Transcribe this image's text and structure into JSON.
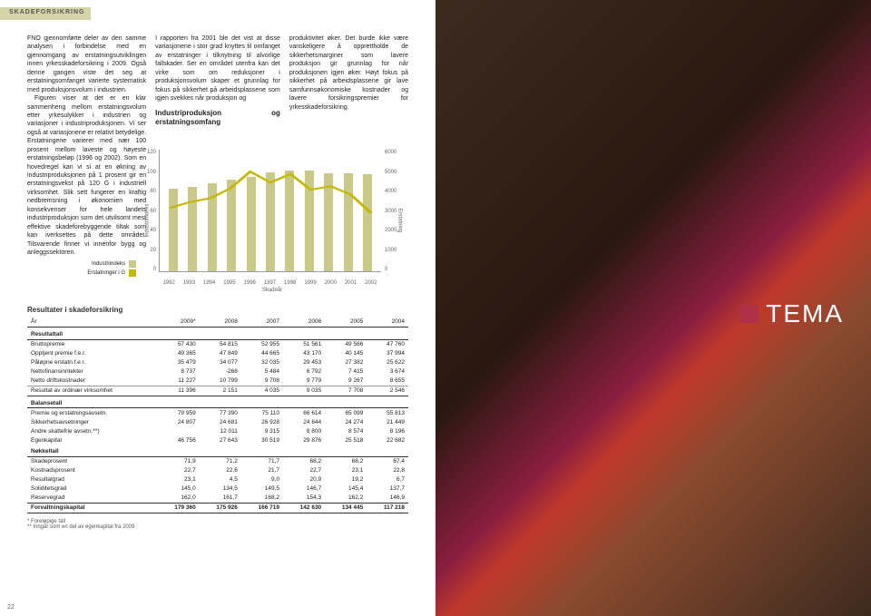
{
  "header": {
    "section_tag": "SKADEFORSIKRING",
    "page_number": "22"
  },
  "text": {
    "col1_p1": "FNO gjennomførte deler av den samme analysen i forbindelse med en gjennomgang av erstatningsutviklingen innen yrkesskadeforsikring i 2009. Også denne gangen viste det seg at erstatningsomfanget varierte systematisk med produksjonsvolum i industrien.",
    "col1_p2": "Figuren viser at det er en klar sammenheng mellom erstatningsvolum etter yrkesulykker i industrien og variasjoner i industriproduksjonen. Vi ser også at variasjonene er relativt betydelige. Erstatningene varierer med nær 100 prosent mellom laveste og høyeste erstatningsbeløp (1996 og 2002). Som en hovedregel kan vi si at en økning av industriproduksjonen på 1 prosent gir en erstatningsvekst på 120 G i industriell virksomhet. Slik sett fungerer en kraftig nedbremsning i økonomien med konsekvenser for hele landets industriproduksjon som det utvilsomt mest effektive skadeforebyggende tiltak som kan iverksettes på dette området. Tilsvarende finner vi innenfor bygg og anleggssektoren.",
    "col2_p1": "I rapporten fra 2001 ble det vist at disse variasjonene i stor grad knyttes til omfanget av erstatninger i tilknytning til alvorlige fallskader. Ser en området utenfra kan det virke som om reduksjoner i produksjonsvolum skaper et grunnlag for fokus på sikkerhet på arbeidsplassene som igjen svekkes når produksjon og",
    "col3_p1": "produktivitet øker. Det burde ikke være vanskeligere å opprettholde de sikkerhetsmarginer som lavere produksjon gir grunnlag for når produksjonen igjen øker. Høyt fokus på sikkerhet på arbeidsplassene gir lave samfunnsøkonomiske kostnader og lavere forsikringspremier for yrkesskadeforsikring."
  },
  "chart": {
    "title": "Industriproduksjon og erstatningsomfang",
    "type": "combo-bar-line",
    "x_label": "Skadeår",
    "y_left_label": "Industriindeks",
    "y_right_label": "Erstatning",
    "categories": [
      "1992",
      "1993",
      "1994",
      "1995",
      "1996",
      "1997",
      "1998",
      "1999",
      "2000",
      "2001",
      "2002"
    ],
    "y_left": {
      "min": 0,
      "max": 120,
      "step": 20
    },
    "y_right": {
      "min": 0,
      "max": 6000,
      "step": 1000
    },
    "bars_values": [
      82,
      84,
      87,
      91,
      94,
      98,
      100,
      99,
      97,
      97,
      96
    ],
    "bars_pct": [
      68,
      70,
      73,
      76,
      78,
      82,
      83,
      83,
      81,
      81,
      80
    ],
    "line_values": [
      3100,
      3400,
      3600,
      4100,
      4900,
      4400,
      4800,
      4000,
      4200,
      3800,
      2900
    ],
    "line_pct": [
      52,
      57,
      60,
      68,
      82,
      73,
      80,
      67,
      70,
      63,
      48
    ],
    "bar_color": "#c9c98a",
    "line_color": "#c4b800",
    "grid_color": "#dddddd",
    "legend": [
      {
        "label": "Industriindeks",
        "color": "#c9c98a"
      },
      {
        "label": "Erstatninger i G",
        "color": "#c4b800"
      }
    ]
  },
  "table": {
    "title": "Resultater i skadeforsikring",
    "columns": [
      "År",
      "2009*",
      "2008",
      "2007",
      "2006",
      "2005",
      "2004"
    ],
    "sections": [
      {
        "header": "Resultattall",
        "rows": [
          [
            "Bruttopremie",
            "57 430",
            "54 815",
            "52 955",
            "51 561",
            "49 566",
            "47 760"
          ],
          [
            "Opptjent premie f.e.r.",
            "49 365",
            "47 849",
            "44 665",
            "43 170",
            "40 145",
            "37 994"
          ],
          [
            "Påløpne erstatn.f.e.r.",
            "35 479",
            "34 077",
            "32 035",
            "29 453",
            "27 382",
            "25 622"
          ],
          [
            "Nettofinansinntekter",
            "8 737",
            "-268",
            "5 484",
            "6 792",
            "7 415",
            "3 674"
          ],
          [
            "Netto driftskostnader",
            "11 227",
            "10 799",
            "9 708",
            "9 779",
            "9 267",
            "8 655"
          ]
        ],
        "sum": [
          "Resultat av ordinær virksomhet",
          "11 396",
          "2 151",
          "4 035",
          "9 035",
          "7 708",
          "2 546"
        ]
      },
      {
        "header": "Balansetall",
        "rows": [
          [
            "Premie og erstatningsavsetn.",
            "79 959",
            "77 390",
            "75 110",
            "66 614",
            "65 099",
            "55 813"
          ],
          [
            "Sikkerhetsavsetninger",
            "24 807",
            "24 681",
            "26 928",
            "24 644",
            "24 274",
            "21 449"
          ],
          [
            "Andre skattefrie avsetn.**)",
            "",
            "12 011",
            "9 315",
            "8 800",
            "8 574",
            "8 196"
          ],
          [
            "Egenkapital",
            "46 756",
            "27 643",
            "30 519",
            "29 876",
            "25 518",
            "22 682"
          ]
        ]
      },
      {
        "header": "Nøkkeltall",
        "rows": [
          [
            "Skadeprosent",
            "71,9",
            "71,2",
            "71,7",
            "68,2",
            "68,2",
            "67,4"
          ],
          [
            "Kostnadsprosent",
            "22,7",
            "22,6",
            "21,7",
            "22,7",
            "23,1",
            "22,8"
          ],
          [
            "Resultatgrad",
            "23,1",
            "4,5",
            "9,0",
            "20,9",
            "19,2",
            "6,7"
          ],
          [
            "Soliditetsgrad",
            "145,0",
            "134,5",
            "149,5",
            "146,7",
            "145,4",
            "137,7"
          ],
          [
            "Reservegrad",
            "162,0",
            "161,7",
            "168,2",
            "154,3",
            "162,2",
            "146,9"
          ]
        ]
      }
    ],
    "bold_row": [
      "Forvaltningskapital",
      "179 360",
      "175 926",
      "166 719",
      "142 630",
      "134 445",
      "117 218"
    ],
    "footnotes": [
      "* Foreløpige tall",
      "** Inngår som en del av egenkapital fra 2009"
    ]
  },
  "right_page": {
    "tema_label": "TEMA",
    "square_color": "#b0304a"
  }
}
